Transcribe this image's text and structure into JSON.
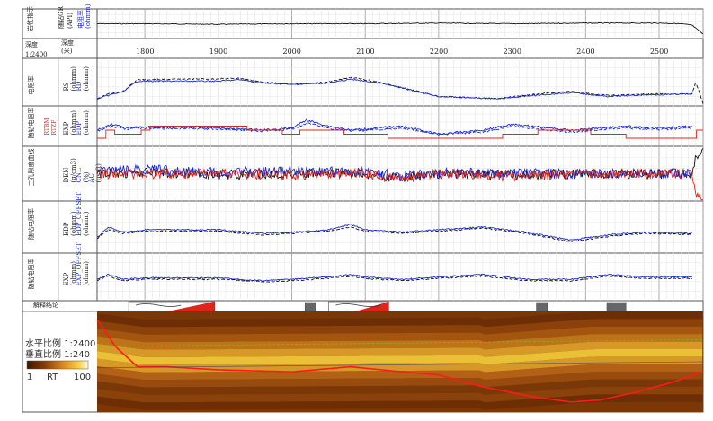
{
  "header": {
    "depth_label": "深度",
    "depth_unit": "深度\n(米)",
    "scale": "1:2400",
    "track1_name": "岩性指示",
    "track1_curves": [
      "随钻GR",
      "电阻率"
    ],
    "track1_units": [
      "(API)",
      "(ohmm)"
    ]
  },
  "tracks": [
    {
      "name": "电阻率",
      "curves": [
        "RS",
        "RD"
      ],
      "units": [
        "(ohmm)",
        "(ohmm)"
      ]
    },
    {
      "name": "随钻电阻率",
      "curves": [
        "EXP",
        "EDP"
      ],
      "units": [
        "(ohmm)",
        "(ohmm)"
      ],
      "extra": [
        "RTBM",
        "RTZF"
      ]
    },
    {
      "name": "三孔隙度曲线",
      "curves": [
        "DEN",
        "CNL",
        "AC"
      ],
      "units": [
        "(g/cm3)",
        "(%)",
        "(us/ft)"
      ]
    },
    {
      "name": "随钻电阻率",
      "curves": [
        "EDP",
        "EDP_OFFSET"
      ],
      "units": [
        "(ohmm)",
        "(ohmm)"
      ]
    },
    {
      "name": "随钻电阻率",
      "curves": [
        "EXP",
        "EXP_OFFSET"
      ],
      "units": [
        "(ohmm)",
        "(ohmm)"
      ]
    }
  ],
  "interpretation_label": "解释结论",
  "legend": {
    "h_scale": "水平比例 1:2400",
    "v_scale": "垂直比例 1:240",
    "min": "1",
    "var": "RT",
    "max": "100"
  },
  "colors": {
    "blue": "#1a2bd6",
    "black": "#111111",
    "red": "#e0231b",
    "grid": "#d0d0d0"
  },
  "chart_data": {
    "type": "line",
    "x_axis": {
      "label": "深度(米)",
      "ticks": [
        1800,
        1900,
        2000,
        2100,
        2200,
        2300,
        2400,
        2500
      ],
      "range": [
        1735,
        2560
      ]
    },
    "series": [
      {
        "name": "随钻GR",
        "track": 0,
        "x": [
          1735,
          1800,
          1900,
          2000,
          2100,
          2200,
          2300,
          2400,
          2500,
          2530,
          2545,
          2560
        ],
        "y": [
          0.5,
          0.5,
          0.52,
          0.5,
          0.5,
          0.48,
          0.5,
          0.48,
          0.48,
          0.5,
          0.55,
          0.85
        ]
      },
      {
        "name": "RS",
        "track": 1,
        "x": [
          1735,
          1750,
          1770,
          1790,
          1900,
          1930,
          1960,
          2000,
          2050,
          2080,
          2120,
          2200,
          2280,
          2330,
          2380,
          2430,
          2480,
          2545,
          2550,
          2560
        ],
        "y": [
          0.85,
          0.75,
          0.7,
          0.45,
          0.43,
          0.42,
          0.5,
          0.55,
          0.5,
          0.4,
          0.5,
          0.8,
          0.85,
          0.75,
          0.7,
          0.78,
          0.75,
          0.75,
          0.5,
          0.95
        ]
      },
      {
        "name": "RD",
        "track": 1,
        "x": [
          1735,
          1750,
          1770,
          1790,
          1900,
          1930,
          1960,
          2000,
          2050,
          2080,
          2120,
          2200,
          2280,
          2330,
          2380,
          2430,
          2480,
          2545
        ],
        "y": [
          0.85,
          0.78,
          0.7,
          0.48,
          0.48,
          0.45,
          0.52,
          0.55,
          0.52,
          0.44,
          0.52,
          0.8,
          0.85,
          0.78,
          0.72,
          0.8,
          0.77,
          0.75
        ]
      },
      {
        "name": "EXP",
        "track": 2,
        "x": [
          1735,
          1755,
          1775,
          1800,
          1900,
          1960,
          2000,
          2020,
          2050,
          2080,
          2150,
          2200,
          2260,
          2300,
          2350,
          2380,
          2420,
          2450,
          2500,
          2545
        ],
        "y": [
          0.6,
          0.45,
          0.55,
          0.52,
          0.55,
          0.6,
          0.55,
          0.35,
          0.5,
          0.6,
          0.5,
          0.7,
          0.6,
          0.45,
          0.55,
          0.6,
          0.55,
          0.5,
          0.55,
          0.5
        ]
      },
      {
        "name": "EDP",
        "track": 2,
        "x": [
          1735,
          1755,
          1775,
          1800,
          1900,
          1960,
          2000,
          2020,
          2050,
          2080,
          2150,
          2200,
          2260,
          2300,
          2350,
          2380,
          2420,
          2450,
          2500,
          2545
        ],
        "y": [
          0.62,
          0.5,
          0.57,
          0.55,
          0.57,
          0.62,
          0.58,
          0.42,
          0.55,
          0.62,
          0.55,
          0.7,
          0.65,
          0.5,
          0.6,
          0.65,
          0.58,
          0.55,
          0.58,
          0.55
        ]
      },
      {
        "name": "RTBM",
        "track": 2,
        "x": [
          1735,
          1745,
          1780,
          1800,
          1900,
          1960,
          2000,
          2030,
          2080,
          2130,
          2200,
          2250,
          2300,
          2350,
          2400,
          2450,
          2500,
          2545,
          2560
        ],
        "y": [
          0.8,
          0.6,
          0.75,
          0.5,
          0.5,
          0.6,
          0.7,
          0.55,
          0.7,
          0.75,
          0.75,
          0.8,
          0.7,
          0.6,
          0.65,
          0.75,
          0.8,
          0.75,
          0.4
        ]
      },
      {
        "name": "DEN",
        "track": 3,
        "x": [
          1735,
          1800,
          1900,
          2000,
          2100,
          2150,
          2200,
          2300,
          2400,
          2500,
          2545,
          2550,
          2560
        ],
        "y": [
          0.5,
          0.48,
          0.52,
          0.5,
          0.5,
          0.58,
          0.5,
          0.52,
          0.5,
          0.5,
          0.5,
          0.2,
          0.1
        ]
      },
      {
        "name": "CNL",
        "track": 3,
        "x": [
          1735,
          1800,
          1900,
          2000,
          2100,
          2150,
          2200,
          2300,
          2400,
          2500,
          2545
        ],
        "y": [
          0.45,
          0.42,
          0.48,
          0.45,
          0.45,
          0.55,
          0.48,
          0.5,
          0.5,
          0.5,
          0.5
        ]
      },
      {
        "name": "AC",
        "track": 3,
        "x": [
          1735,
          1800,
          1900,
          2000,
          2100,
          2150,
          2200,
          2300,
          2400,
          2500,
          2545,
          2550,
          2560
        ],
        "y": [
          0.5,
          0.5,
          0.5,
          0.52,
          0.5,
          0.6,
          0.5,
          0.55,
          0.5,
          0.5,
          0.5,
          0.9,
          0.95
        ]
      },
      {
        "name": "EDP",
        "track": 4,
        "x": [
          1735,
          1750,
          1770,
          1800,
          1900,
          1960,
          2000,
          2050,
          2080,
          2100,
          2150,
          2200,
          2260,
          2320,
          2380,
          2430,
          2480,
          2545
        ],
        "y": [
          0.7,
          0.5,
          0.6,
          0.55,
          0.55,
          0.62,
          0.6,
          0.55,
          0.45,
          0.55,
          0.6,
          0.55,
          0.5,
          0.6,
          0.75,
          0.65,
          0.6,
          0.62
        ]
      },
      {
        "name": "EDP_OFFSET",
        "track": 4,
        "x": [
          1735,
          1750,
          1770,
          1800,
          1900,
          1960,
          2000,
          2050,
          2080,
          2100,
          2150,
          2200,
          2260,
          2320,
          2380,
          2430,
          2480,
          2545
        ],
        "y": [
          0.72,
          0.55,
          0.62,
          0.58,
          0.58,
          0.65,
          0.62,
          0.58,
          0.5,
          0.58,
          0.62,
          0.58,
          0.52,
          0.62,
          0.78,
          0.68,
          0.62,
          0.64
        ]
      },
      {
        "name": "EXP",
        "track": 5,
        "x": [
          1735,
          1750,
          1770,
          1800,
          1900,
          1960,
          2000,
          2050,
          2080,
          2100,
          2150,
          2200,
          2260,
          2320,
          2380,
          2430,
          2480,
          2545
        ],
        "y": [
          0.55,
          0.45,
          0.55,
          0.52,
          0.52,
          0.58,
          0.55,
          0.5,
          0.45,
          0.5,
          0.55,
          0.5,
          0.45,
          0.55,
          0.55,
          0.45,
          0.5,
          0.5
        ]
      },
      {
        "name": "EXP_OFFSET",
        "track": 5,
        "x": [
          1735,
          1750,
          1770,
          1800,
          1900,
          1960,
          2000,
          2050,
          2080,
          2100,
          2150,
          2200,
          2260,
          2320,
          2380,
          2430,
          2480,
          2545
        ],
        "y": [
          0.58,
          0.48,
          0.58,
          0.55,
          0.55,
          0.6,
          0.58,
          0.53,
          0.48,
          0.53,
          0.58,
          0.53,
          0.48,
          0.58,
          0.58,
          0.48,
          0.53,
          0.53
        ]
      }
    ],
    "interpretation_zones": [
      {
        "x0": 1778,
        "x1": 1895,
        "type": "fan"
      },
      {
        "x0": 2018,
        "x1": 2032,
        "type": "box"
      },
      {
        "x0": 2050,
        "x1": 2132,
        "type": "fan"
      },
      {
        "x0": 2333,
        "x1": 2348,
        "type": "box"
      },
      {
        "x0": 2429,
        "x1": 2455,
        "type": "box"
      }
    ],
    "wellpath": {
      "x": [
        1735,
        1760,
        1790,
        1830,
        1900,
        2000,
        2080,
        2150,
        2200,
        2260,
        2330,
        2380,
        2420,
        2470,
        2520,
        2560
      ],
      "y": [
        0.08,
        0.35,
        0.55,
        0.55,
        0.58,
        0.6,
        0.55,
        0.6,
        0.63,
        0.75,
        0.85,
        0.9,
        0.88,
        0.8,
        0.7,
        0.6
      ]
    }
  }
}
